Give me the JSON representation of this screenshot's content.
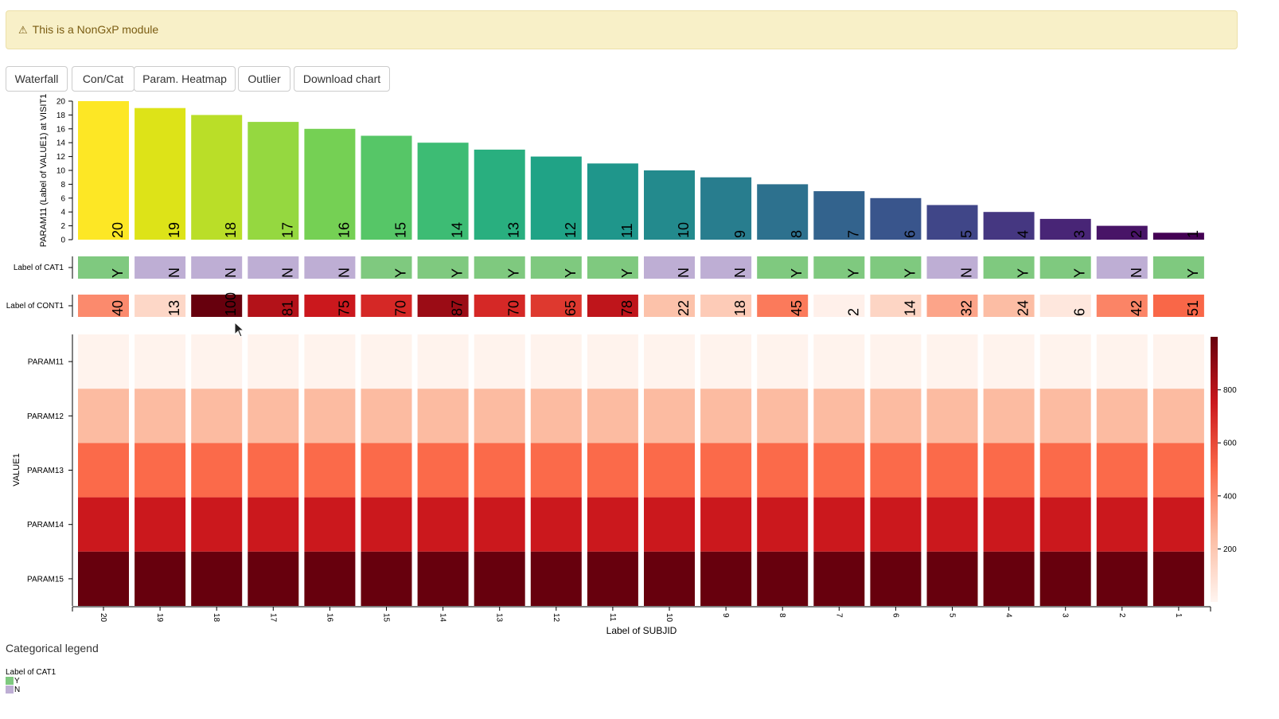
{
  "alert": {
    "icon": "warning-icon",
    "text": "This is a NonGxP module"
  },
  "toolbar": {
    "buttons": [
      "Waterfall",
      "Con/Cat",
      "Param. Heatmap",
      "Outlier",
      "Download chart"
    ]
  },
  "chart_data": {
    "type": "bar",
    "subjects": [
      "20",
      "19",
      "18",
      "17",
      "16",
      "15",
      "14",
      "13",
      "12",
      "11",
      "10",
      "9",
      "8",
      "7",
      "6",
      "5",
      "4",
      "3",
      "2",
      "1"
    ],
    "waterfall": {
      "ylabel": "PARAM11 (Label of VALUE1) at VISIT1",
      "values": [
        20,
        19,
        18,
        17,
        16,
        15,
        14,
        13,
        12,
        11,
        10,
        9,
        8,
        7,
        6,
        5,
        4,
        3,
        2,
        1
      ],
      "ylim": [
        0,
        20
      ],
      "yticks": [
        0,
        2,
        4,
        6,
        8,
        10,
        12,
        14,
        16,
        18,
        20
      ],
      "colors": [
        "#fde725",
        "#dde318",
        "#bade28",
        "#95d840",
        "#75d054",
        "#56c667",
        "#3dbc74",
        "#29af7f",
        "#20a386",
        "#1f968b",
        "#238a8d",
        "#287d8e",
        "#2d718e",
        "#33638d",
        "#39558c",
        "#404688",
        "#453781",
        "#482576",
        "#481467",
        "#440154"
      ]
    },
    "cat_track": {
      "label": "Label of CAT1",
      "values": [
        "Y",
        "N",
        "N",
        "N",
        "N",
        "Y",
        "Y",
        "Y",
        "Y",
        "Y",
        "N",
        "N",
        "Y",
        "Y",
        "Y",
        "N",
        "Y",
        "Y",
        "N",
        "Y"
      ],
      "colors": {
        "Y": "#7fc97f",
        "N": "#beaed4"
      }
    },
    "cont_track": {
      "label": "Label of CONT1",
      "values": [
        40,
        13,
        100,
        81,
        75,
        70,
        87,
        70,
        65,
        78,
        22,
        18,
        45,
        2,
        14,
        32,
        24,
        6,
        42,
        51
      ]
    },
    "heatmap": {
      "ylabel": "VALUE1",
      "params": [
        "PARAM11",
        "PARAM12",
        "PARAM13",
        "PARAM14",
        "PARAM15"
      ],
      "row_values": [
        10,
        250,
        500,
        750,
        1000
      ],
      "colorbar_ticks": [
        200,
        400,
        600,
        800
      ],
      "scale": [
        [
          "#fff5f0",
          0
        ],
        [
          "#fcbba1",
          250
        ],
        [
          "#fb6a4a",
          500
        ],
        [
          "#cb181d",
          750
        ],
        [
          "#67000d",
          1000
        ]
      ]
    },
    "xlabel": "Label of SUBJID"
  },
  "legend": {
    "title": "Categorical legend",
    "subtitle": "Label of CAT1",
    "items": [
      {
        "label": "Y",
        "color": "#7fc97f"
      },
      {
        "label": "N",
        "color": "#beaed4"
      }
    ]
  }
}
